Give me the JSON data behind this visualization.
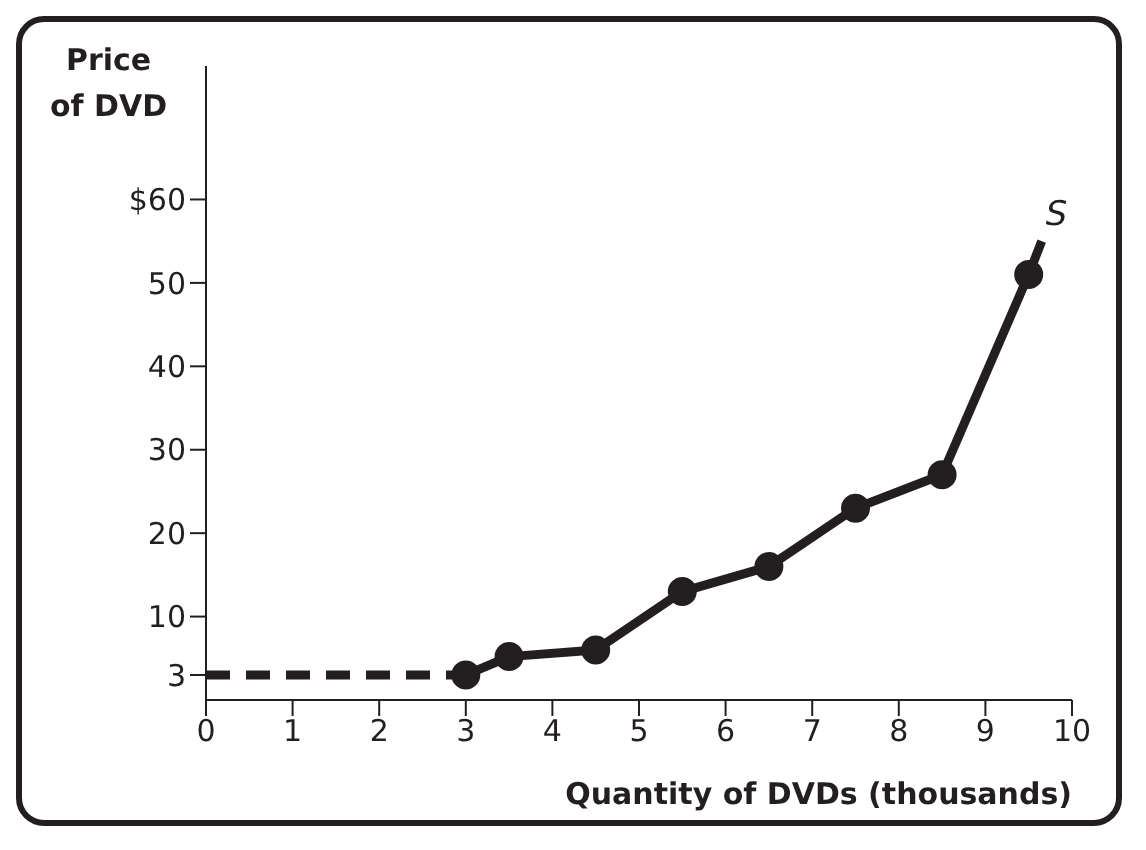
{
  "chart_data": {
    "type": "line",
    "xlabel": "Quantity of DVDs (thousands)",
    "ylabel": "Price\nof DVD",
    "xlim": [
      0,
      10
    ],
    "xticks": [
      0,
      1,
      2,
      3,
      4,
      5,
      6,
      7,
      8,
      9,
      10
    ],
    "ylim": [
      0,
      76
    ],
    "yticks": [
      {
        "value": 3,
        "label": "3"
      },
      10,
      20,
      30,
      40,
      50,
      {
        "value": 60,
        "label": "$60"
      }
    ],
    "series": [
      {
        "color": "#231f20",
        "x": [
          0,
          3
        ],
        "values": [
          3,
          3
        ],
        "line_style": "dashed"
      },
      {
        "color": "#231f20",
        "x": [
          3,
          3.5,
          4.5,
          5.5,
          6.5,
          7.5,
          8.5,
          9.5
        ],
        "values": [
          3,
          5.2,
          6,
          13,
          16,
          23,
          27,
          51
        ],
        "line_style": "solid",
        "marker": "circle"
      },
      {
        "color": "#231f20",
        "x": [
          9.5,
          9.65
        ],
        "values": [
          51,
          55
        ],
        "line_style": "solid"
      }
    ],
    "annotations": [
      {
        "text": "S",
        "x": 9.65,
        "y": 55
      }
    ]
  }
}
